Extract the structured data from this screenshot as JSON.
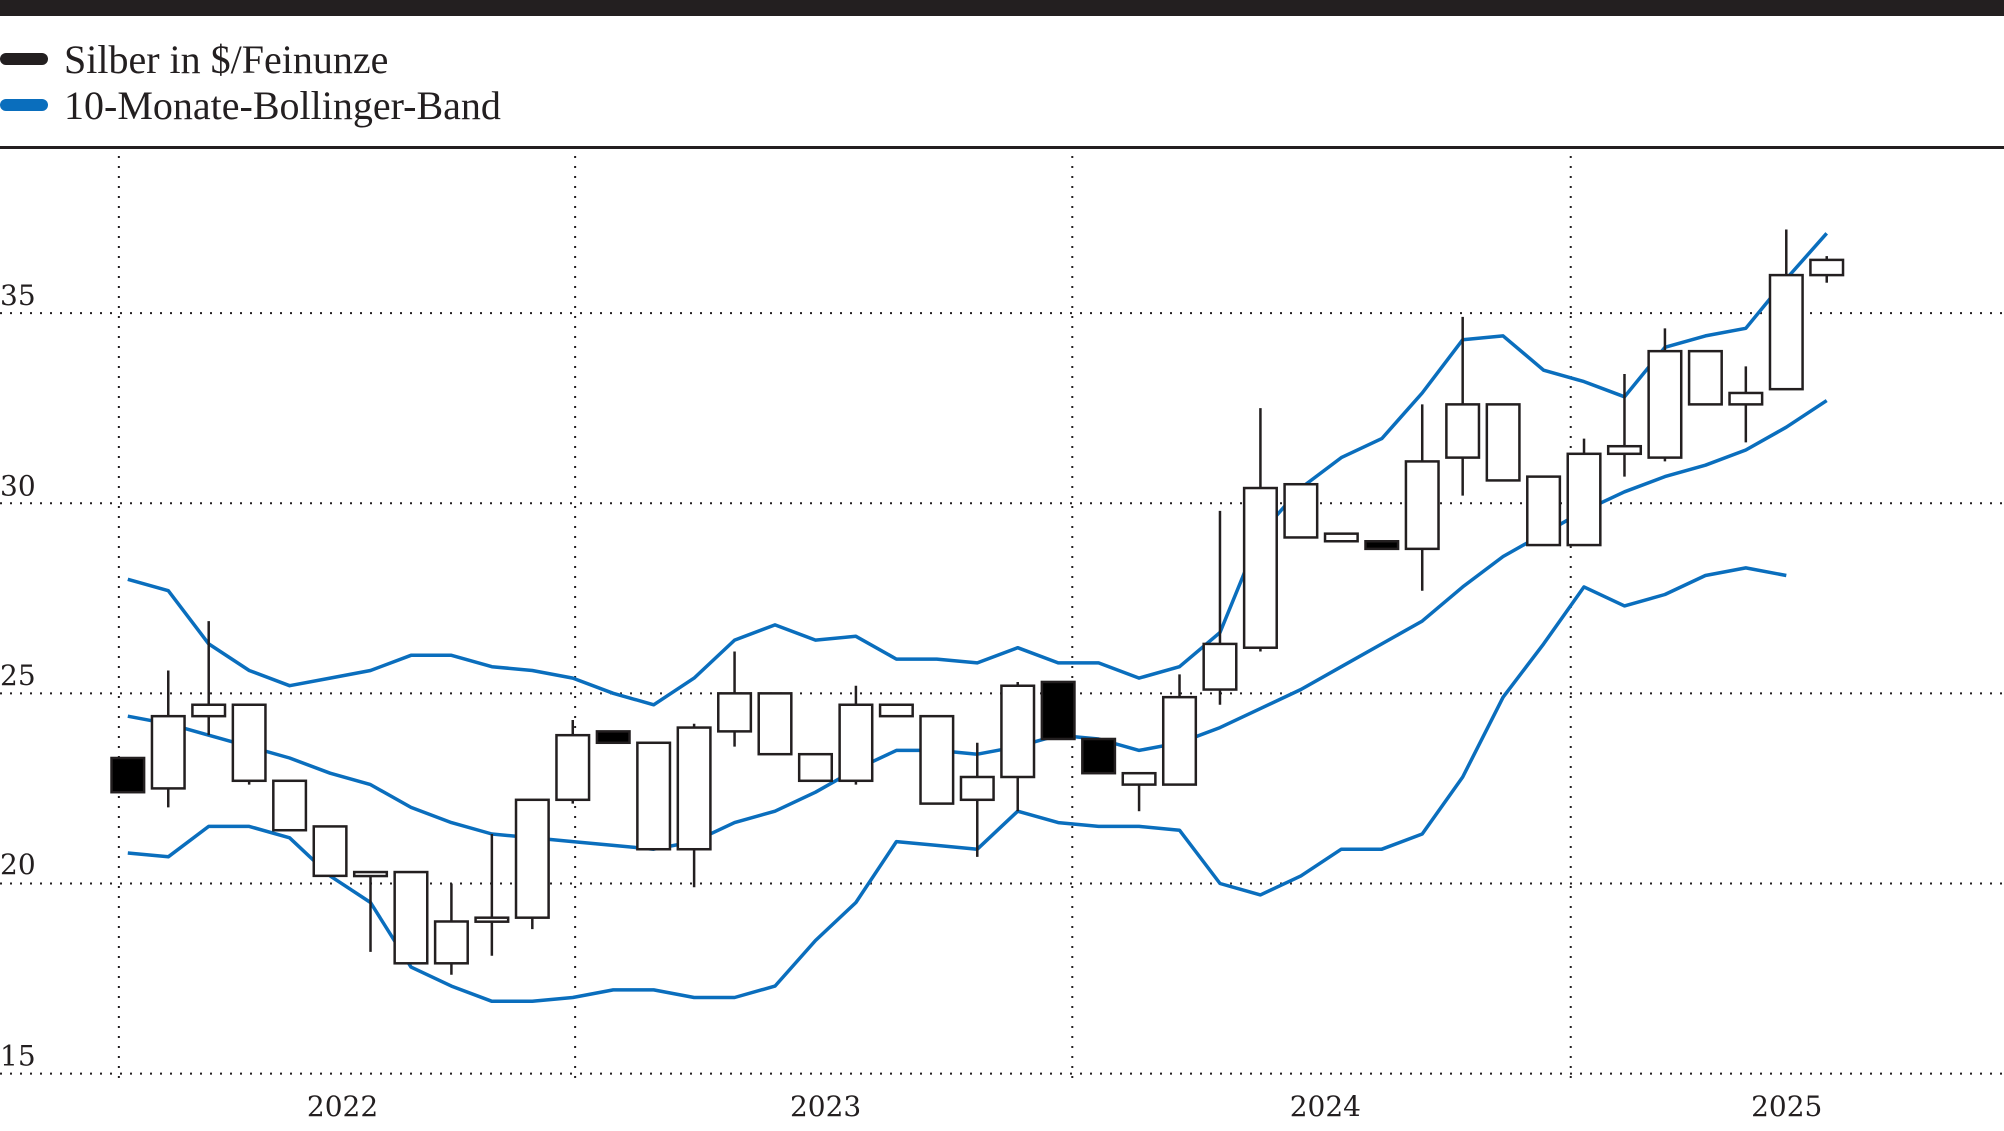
{
  "legend": {
    "items": [
      {
        "label": "Silber in $/Feinunze",
        "color": "#231f20"
      },
      {
        "label": "10-Monate-Bollinger-Band",
        "color": "#0a6ebd"
      }
    ]
  },
  "axes": {
    "y_ticks": [
      "35",
      "30",
      "25",
      "20",
      "15"
    ],
    "x_ticks": [
      "2022",
      "2023",
      "2024",
      "2025"
    ]
  },
  "chart_data": {
    "type": "candlestick",
    "title": "",
    "xlabel": "",
    "ylabel": "",
    "ylim": [
      15,
      38
    ],
    "grid": true,
    "legend_position": "top-left",
    "legend": [
      "Silber in $/Feinunze",
      "10-Monate-Bollinger-Band"
    ],
    "y_ticks": [
      15,
      20,
      25,
      30,
      35
    ],
    "x_tick_labels": [
      "2022",
      "2023",
      "2024",
      "2025"
    ],
    "candles": [
      {
        "o": 23.3,
        "h": 23.3,
        "l": 22.4,
        "c": 22.4
      },
      {
        "o": 22.5,
        "h": 25.6,
        "l": 22.0,
        "c": 24.4
      },
      {
        "o": 24.4,
        "h": 26.9,
        "l": 23.9,
        "c": 24.7
      },
      {
        "o": 24.7,
        "h": 24.7,
        "l": 22.6,
        "c": 22.7
      },
      {
        "o": 22.7,
        "h": 22.7,
        "l": 21.4,
        "c": 21.4
      },
      {
        "o": 21.5,
        "h": 21.5,
        "l": 20.2,
        "c": 20.2
      },
      {
        "o": 20.3,
        "h": 20.3,
        "l": 18.2,
        "c": 20.2
      },
      {
        "o": 20.3,
        "h": 20.3,
        "l": 17.9,
        "c": 17.9
      },
      {
        "o": 17.9,
        "h": 20.0,
        "l": 17.6,
        "c": 19.0
      },
      {
        "o": 19.1,
        "h": 21.3,
        "l": 18.1,
        "c": 19.1
      },
      {
        "o": 19.1,
        "h": 22.2,
        "l": 18.8,
        "c": 22.2
      },
      {
        "o": 22.2,
        "h": 24.3,
        "l": 22.1,
        "c": 23.9
      },
      {
        "o": 24.0,
        "h": 24.0,
        "l": 23.7,
        "c": 23.7
      },
      {
        "o": 23.7,
        "h": 23.7,
        "l": 20.9,
        "c": 20.9
      },
      {
        "o": 20.9,
        "h": 24.2,
        "l": 19.9,
        "c": 24.1
      },
      {
        "o": 24.0,
        "h": 26.1,
        "l": 23.6,
        "c": 25.0
      },
      {
        "o": 25.0,
        "h": 25.0,
        "l": 23.4,
        "c": 23.4
      },
      {
        "o": 23.4,
        "h": 23.4,
        "l": 22.7,
        "c": 22.7
      },
      {
        "o": 22.7,
        "h": 25.2,
        "l": 22.6,
        "c": 24.7
      },
      {
        "o": 24.7,
        "h": 24.7,
        "l": 24.4,
        "c": 24.4
      },
      {
        "o": 24.4,
        "h": 24.4,
        "l": 22.1,
        "c": 22.1
      },
      {
        "o": 22.2,
        "h": 23.7,
        "l": 20.7,
        "c": 22.8
      },
      {
        "o": 22.8,
        "h": 25.3,
        "l": 21.9,
        "c": 25.2
      },
      {
        "o": 25.3,
        "h": 25.3,
        "l": 23.8,
        "c": 23.8
      },
      {
        "o": 23.8,
        "h": 23.8,
        "l": 22.9,
        "c": 22.9
      },
      {
        "o": 22.9,
        "h": 22.9,
        "l": 21.9,
        "c": 22.6
      },
      {
        "o": 22.6,
        "h": 25.5,
        "l": 22.6,
        "c": 24.9
      },
      {
        "o": 25.1,
        "h": 29.8,
        "l": 24.7,
        "c": 26.3
      },
      {
        "o": 26.2,
        "h": 32.5,
        "l": 26.1,
        "c": 30.4
      },
      {
        "o": 30.5,
        "h": 30.5,
        "l": 29.1,
        "c": 29.1
      },
      {
        "o": 29.2,
        "h": 29.2,
        "l": 29.0,
        "c": 29.0
      },
      {
        "o": 29.0,
        "h": 29.0,
        "l": 28.8,
        "c": 28.8
      },
      {
        "o": 28.8,
        "h": 32.6,
        "l": 27.7,
        "c": 31.1
      },
      {
        "o": 31.2,
        "h": 34.9,
        "l": 30.2,
        "c": 32.6
      },
      {
        "o": 32.6,
        "h": 32.6,
        "l": 30.6,
        "c": 30.6
      },
      {
        "o": 28.9,
        "h": 30.7,
        "l": 28.9,
        "c": 30.7
      },
      {
        "o": 28.9,
        "h": 31.7,
        "l": 28.9,
        "c": 31.3
      },
      {
        "o": 31.3,
        "h": 33.4,
        "l": 30.7,
        "c": 31.5
      },
      {
        "o": 31.2,
        "h": 34.6,
        "l": 31.1,
        "c": 34.0
      },
      {
        "o": 34.0,
        "h": 34.0,
        "l": 32.6,
        "c": 32.6
      },
      {
        "o": 32.6,
        "h": 33.6,
        "l": 31.6,
        "c": 32.9
      },
      {
        "o": 33.0,
        "h": 37.2,
        "l": 33.0,
        "c": 36.0
      },
      {
        "o": 36.0,
        "h": 36.5,
        "l": 35.8,
        "c": 36.4
      }
    ],
    "series": [
      {
        "name": "Upper Bollinger",
        "values": [
          28.0,
          27.7,
          26.3,
          25.6,
          25.2,
          25.4,
          25.6,
          26.0,
          26.0,
          25.7,
          25.6,
          25.4,
          25.0,
          24.7,
          25.4,
          26.4,
          26.8,
          26.4,
          26.5,
          25.9,
          25.9,
          25.8,
          26.2,
          25.8,
          25.8,
          25.4,
          25.7,
          26.6,
          29.2,
          30.4,
          31.2,
          31.7,
          32.9,
          34.3,
          34.4,
          33.5,
          33.2,
          32.8,
          34.1,
          34.4,
          34.6,
          35.9,
          37.1
        ]
      },
      {
        "name": "Middle Bollinger",
        "values": [
          24.4,
          24.2,
          23.9,
          23.6,
          23.3,
          22.9,
          22.6,
          22.0,
          21.6,
          21.3,
          21.2,
          21.1,
          21.0,
          20.9,
          21.1,
          21.6,
          21.9,
          22.4,
          23.0,
          23.5,
          23.5,
          23.4,
          23.6,
          23.9,
          23.8,
          23.5,
          23.7,
          24.1,
          24.6,
          25.1,
          25.7,
          26.3,
          26.9,
          27.8,
          28.6,
          29.2,
          29.8,
          30.3,
          30.7,
          31.0,
          31.4,
          32.0,
          32.7
        ]
      },
      {
        "name": "Lower Bollinger",
        "values": [
          20.8,
          20.7,
          21.5,
          21.5,
          21.2,
          20.2,
          19.5,
          17.8,
          17.3,
          16.9,
          16.9,
          17.0,
          17.2,
          17.2,
          17.0,
          17.0,
          17.3,
          18.5,
          19.5,
          21.1,
          21.0,
          20.9,
          21.9,
          21.6,
          21.5,
          21.5,
          21.4,
          20.0,
          19.7,
          20.2,
          20.9,
          20.9,
          21.3,
          22.8,
          24.9,
          26.3,
          27.8,
          27.3,
          27.6,
          28.1,
          28.3,
          28.1,
          null
        ]
      }
    ]
  }
}
